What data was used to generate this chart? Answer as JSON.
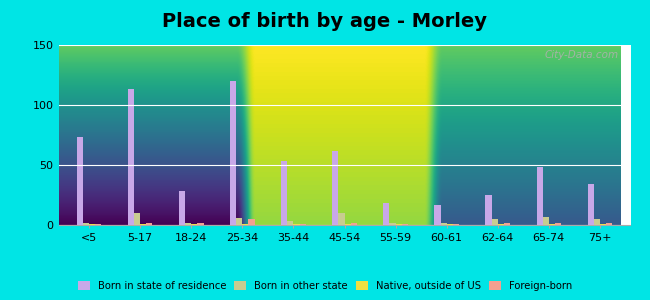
{
  "title": "Place of birth by age - Morley",
  "categories": [
    "<5",
    "5-17",
    "18-24",
    "25-34",
    "35-44",
    "45-54",
    "55-59",
    "60-61",
    "62-64",
    "65-74",
    "75+"
  ],
  "series": {
    "Born in state of residence": [
      73,
      113,
      28,
      120,
      53,
      62,
      18,
      17,
      25,
      48,
      34
    ],
    "Born in other state": [
      2,
      10,
      2,
      6,
      3,
      10,
      2,
      2,
      5,
      7,
      5
    ],
    "Native, outside of US": [
      1,
      1,
      1,
      1,
      1,
      1,
      1,
      1,
      1,
      1,
      1
    ],
    "Foreign-born": [
      1,
      2,
      2,
      5,
      1,
      2,
      1,
      1,
      2,
      2,
      2
    ]
  },
  "colors": {
    "Born in state of residence": "#c8a8e8",
    "Born in other state": "#c8cc90",
    "Native, outside of US": "#f0e040",
    "Foreign-born": "#f4a090"
  },
  "ylim": [
    0,
    150
  ],
  "yticks": [
    0,
    50,
    100,
    150
  ],
  "bar_width": 0.12,
  "background_top": "#e0f5e0",
  "background_bottom": "#c8f0d8",
  "outer_background": "#00e5e5",
  "title_fontsize": 14,
  "watermark": "City-Data.com"
}
